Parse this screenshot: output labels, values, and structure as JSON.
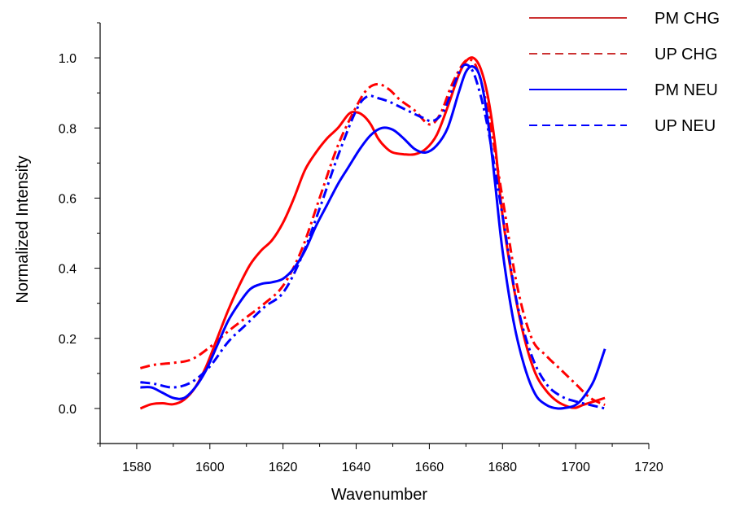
{
  "chart_data": {
    "type": "line",
    "xlabel": "Wavenumber",
    "ylabel": "Normalized Intensity",
    "xlim": [
      1570,
      1720
    ],
    "ylim": [
      -0.1,
      1.1
    ],
    "x_ticks": [
      1580,
      1600,
      1620,
      1640,
      1660,
      1680,
      1700,
      1720
    ],
    "x_tick_labels": [
      "1580",
      "1600",
      "1620",
      "1640",
      "1660",
      "1680",
      "1700",
      "1720"
    ],
    "y_ticks": [
      0.0,
      0.2,
      0.4,
      0.6,
      0.8,
      1.0
    ],
    "y_tick_labels": [
      "0.0",
      "0.2",
      "0.4",
      "0.6",
      "0.8",
      "1.0"
    ],
    "grid": false,
    "legend_position": "top-right",
    "series": [
      {
        "name": "PM CHG",
        "color": "#ff0000",
        "legend_color": "#cc3333",
        "dash": "solid",
        "x": [
          1581,
          1584,
          1587,
          1590,
          1593,
          1596,
          1599,
          1602,
          1605,
          1608,
          1611,
          1614,
          1617,
          1620,
          1623,
          1626,
          1629,
          1632,
          1635,
          1638,
          1640,
          1642,
          1644,
          1646,
          1648,
          1650,
          1653,
          1656,
          1659,
          1662,
          1665,
          1668,
          1670,
          1672,
          1674,
          1676,
          1678,
          1680,
          1683,
          1686,
          1689,
          1692,
          1695,
          1698,
          1700,
          1702,
          1705,
          1708
        ],
        "y": [
          0.0,
          0.012,
          0.015,
          0.012,
          0.025,
          0.06,
          0.12,
          0.2,
          0.28,
          0.35,
          0.41,
          0.45,
          0.48,
          0.53,
          0.6,
          0.68,
          0.73,
          0.77,
          0.8,
          0.84,
          0.845,
          0.835,
          0.81,
          0.77,
          0.745,
          0.73,
          0.725,
          0.725,
          0.74,
          0.78,
          0.86,
          0.95,
          0.99,
          1.0,
          0.97,
          0.89,
          0.75,
          0.55,
          0.35,
          0.2,
          0.1,
          0.05,
          0.02,
          0.005,
          0.002,
          0.01,
          0.02,
          0.03
        ]
      },
      {
        "name": "UP CHG",
        "color": "#ff0000",
        "legend_color": "#cc3333",
        "dash": "dashdot",
        "x": [
          1581,
          1585,
          1590,
          1595,
          1600,
          1605,
          1610,
          1615,
          1620,
          1625,
          1630,
          1635,
          1640,
          1643,
          1646,
          1649,
          1652,
          1656,
          1660,
          1663,
          1666,
          1669,
          1671,
          1673,
          1676,
          1680,
          1684,
          1688,
          1692,
          1696,
          1700,
          1704,
          1708
        ],
        "y": [
          0.115,
          0.125,
          0.13,
          0.14,
          0.175,
          0.22,
          0.26,
          0.3,
          0.35,
          0.45,
          0.6,
          0.75,
          0.86,
          0.91,
          0.925,
          0.91,
          0.88,
          0.85,
          0.81,
          0.84,
          0.92,
          0.98,
          0.995,
          0.97,
          0.85,
          0.6,
          0.35,
          0.2,
          0.15,
          0.11,
          0.07,
          0.03,
          0.01
        ]
      },
      {
        "name": "PM NEU",
        "color": "#0000ff",
        "legend_color": "#0000ff",
        "dash": "solid",
        "x": [
          1581,
          1584,
          1587,
          1590,
          1593,
          1596,
          1599,
          1602,
          1605,
          1608,
          1611,
          1614,
          1617,
          1620,
          1623,
          1626,
          1629,
          1632,
          1635,
          1638,
          1641,
          1644,
          1647,
          1650,
          1653,
          1656,
          1659,
          1662,
          1665,
          1668,
          1670,
          1672,
          1674,
          1676,
          1678,
          1680,
          1683,
          1686,
          1689,
          1692,
          1695,
          1698,
          1700,
          1702,
          1705,
          1708
        ],
        "y": [
          0.06,
          0.06,
          0.045,
          0.03,
          0.03,
          0.06,
          0.11,
          0.18,
          0.25,
          0.3,
          0.34,
          0.355,
          0.36,
          0.37,
          0.4,
          0.45,
          0.52,
          0.58,
          0.64,
          0.69,
          0.74,
          0.78,
          0.8,
          0.795,
          0.77,
          0.74,
          0.73,
          0.75,
          0.8,
          0.9,
          0.96,
          0.975,
          0.94,
          0.82,
          0.64,
          0.45,
          0.25,
          0.12,
          0.04,
          0.01,
          0.0,
          0.003,
          0.01,
          0.03,
          0.08,
          0.17
        ]
      },
      {
        "name": "UP NEU",
        "color": "#0000ff",
        "legend_color": "#0000ff",
        "dash": "dashdot",
        "x": [
          1581,
          1585,
          1590,
          1595,
          1600,
          1605,
          1610,
          1615,
          1620,
          1625,
          1630,
          1635,
          1640,
          1643,
          1646,
          1649,
          1652,
          1655,
          1658,
          1661,
          1664,
          1667,
          1669,
          1671,
          1673,
          1676,
          1680,
          1684,
          1688,
          1692,
          1696,
          1700,
          1704,
          1708
        ],
        "y": [
          0.075,
          0.07,
          0.06,
          0.075,
          0.12,
          0.19,
          0.24,
          0.29,
          0.33,
          0.43,
          0.57,
          0.72,
          0.85,
          0.89,
          0.885,
          0.875,
          0.86,
          0.845,
          0.83,
          0.82,
          0.85,
          0.93,
          0.975,
          0.975,
          0.93,
          0.8,
          0.55,
          0.3,
          0.15,
          0.07,
          0.035,
          0.02,
          0.01,
          0.0
        ]
      }
    ]
  }
}
